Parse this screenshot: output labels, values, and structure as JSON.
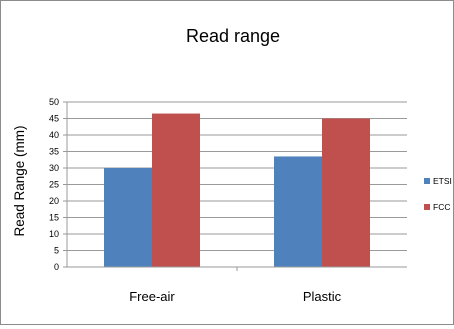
{
  "chart_data": {
    "type": "bar",
    "title": "Read range",
    "xlabel": "",
    "ylabel": "Read Range (mm)",
    "categories": [
      "Free-air",
      "Plastic"
    ],
    "series": [
      {
        "name": "ETSI",
        "color": "#4f81bd",
        "values": [
          30,
          33.5
        ]
      },
      {
        "name": "FCC",
        "color": "#c0504d",
        "values": [
          46.5,
          45
        ]
      }
    ],
    "ylim": [
      0,
      50
    ],
    "yticks": [
      0,
      5,
      10,
      15,
      20,
      25,
      30,
      35,
      40,
      45,
      50
    ],
    "grid": true,
    "legend_position": "right"
  }
}
